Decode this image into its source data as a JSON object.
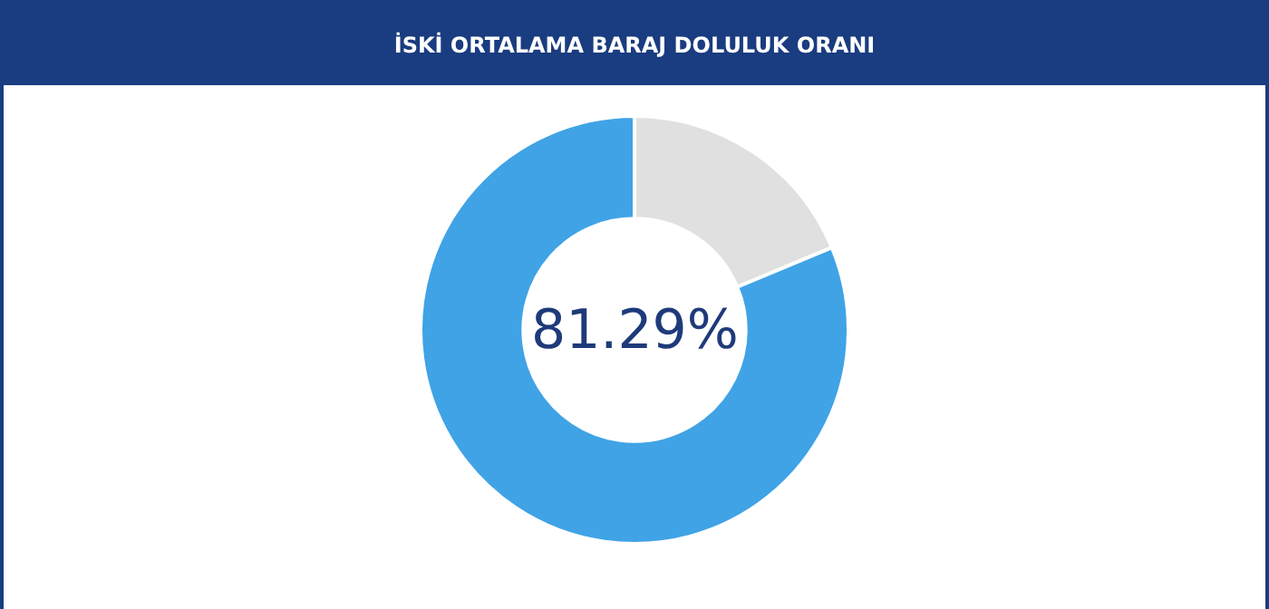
{
  "chart_data": {
    "type": "donut",
    "title": "İSKİ ORTALAMA BARAJ DOLULUK ORANI",
    "categories": [
      null,
      null
    ],
    "values": [
      18.71,
      81.29
    ],
    "colors": [
      "#e0e0e0",
      "#3fa3e6"
    ],
    "value_labels": [
      null,
      "81.29%"
    ],
    "legend": false
  }
}
